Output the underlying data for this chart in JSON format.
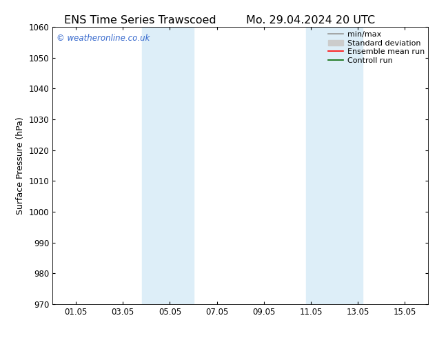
{
  "title_left": "ENS Time Series Trawscoed",
  "title_right": "Mo. 29.04.2024 20 UTC",
  "ylabel": "Surface Pressure (hPa)",
  "ylim": [
    970,
    1060
  ],
  "yticks": [
    970,
    980,
    990,
    1000,
    1010,
    1020,
    1030,
    1040,
    1050,
    1060
  ],
  "xlim_start": 0,
  "xlim_end": 16,
  "xtick_labels": [
    "01.05",
    "03.05",
    "05.05",
    "07.05",
    "09.05",
    "11.05",
    "13.05",
    "15.05"
  ],
  "xtick_positions": [
    1,
    3,
    5,
    7,
    9,
    11,
    13,
    15
  ],
  "shaded_regions": [
    {
      "x_start": 3.8,
      "x_end": 6.0
    },
    {
      "x_start": 10.8,
      "x_end": 13.2
    }
  ],
  "shaded_color": "#ddeef8",
  "watermark_text": "© weatheronline.co.uk",
  "watermark_color": "#3366cc",
  "background_color": "#ffffff",
  "legend_items": [
    {
      "label": "min/max",
      "color": "#999999",
      "lw": 1.2,
      "type": "line"
    },
    {
      "label": "Standard deviation",
      "color": "#cccccc",
      "lw": 7,
      "type": "band"
    },
    {
      "label": "Ensemble mean run",
      "color": "#ff0000",
      "lw": 1.2,
      "type": "line"
    },
    {
      "label": "Controll run",
      "color": "#006600",
      "lw": 1.2,
      "type": "line"
    }
  ],
  "title_fontsize": 11.5,
  "axis_label_fontsize": 9,
  "tick_fontsize": 8.5,
  "legend_fontsize": 8,
  "watermark_fontsize": 8.5
}
